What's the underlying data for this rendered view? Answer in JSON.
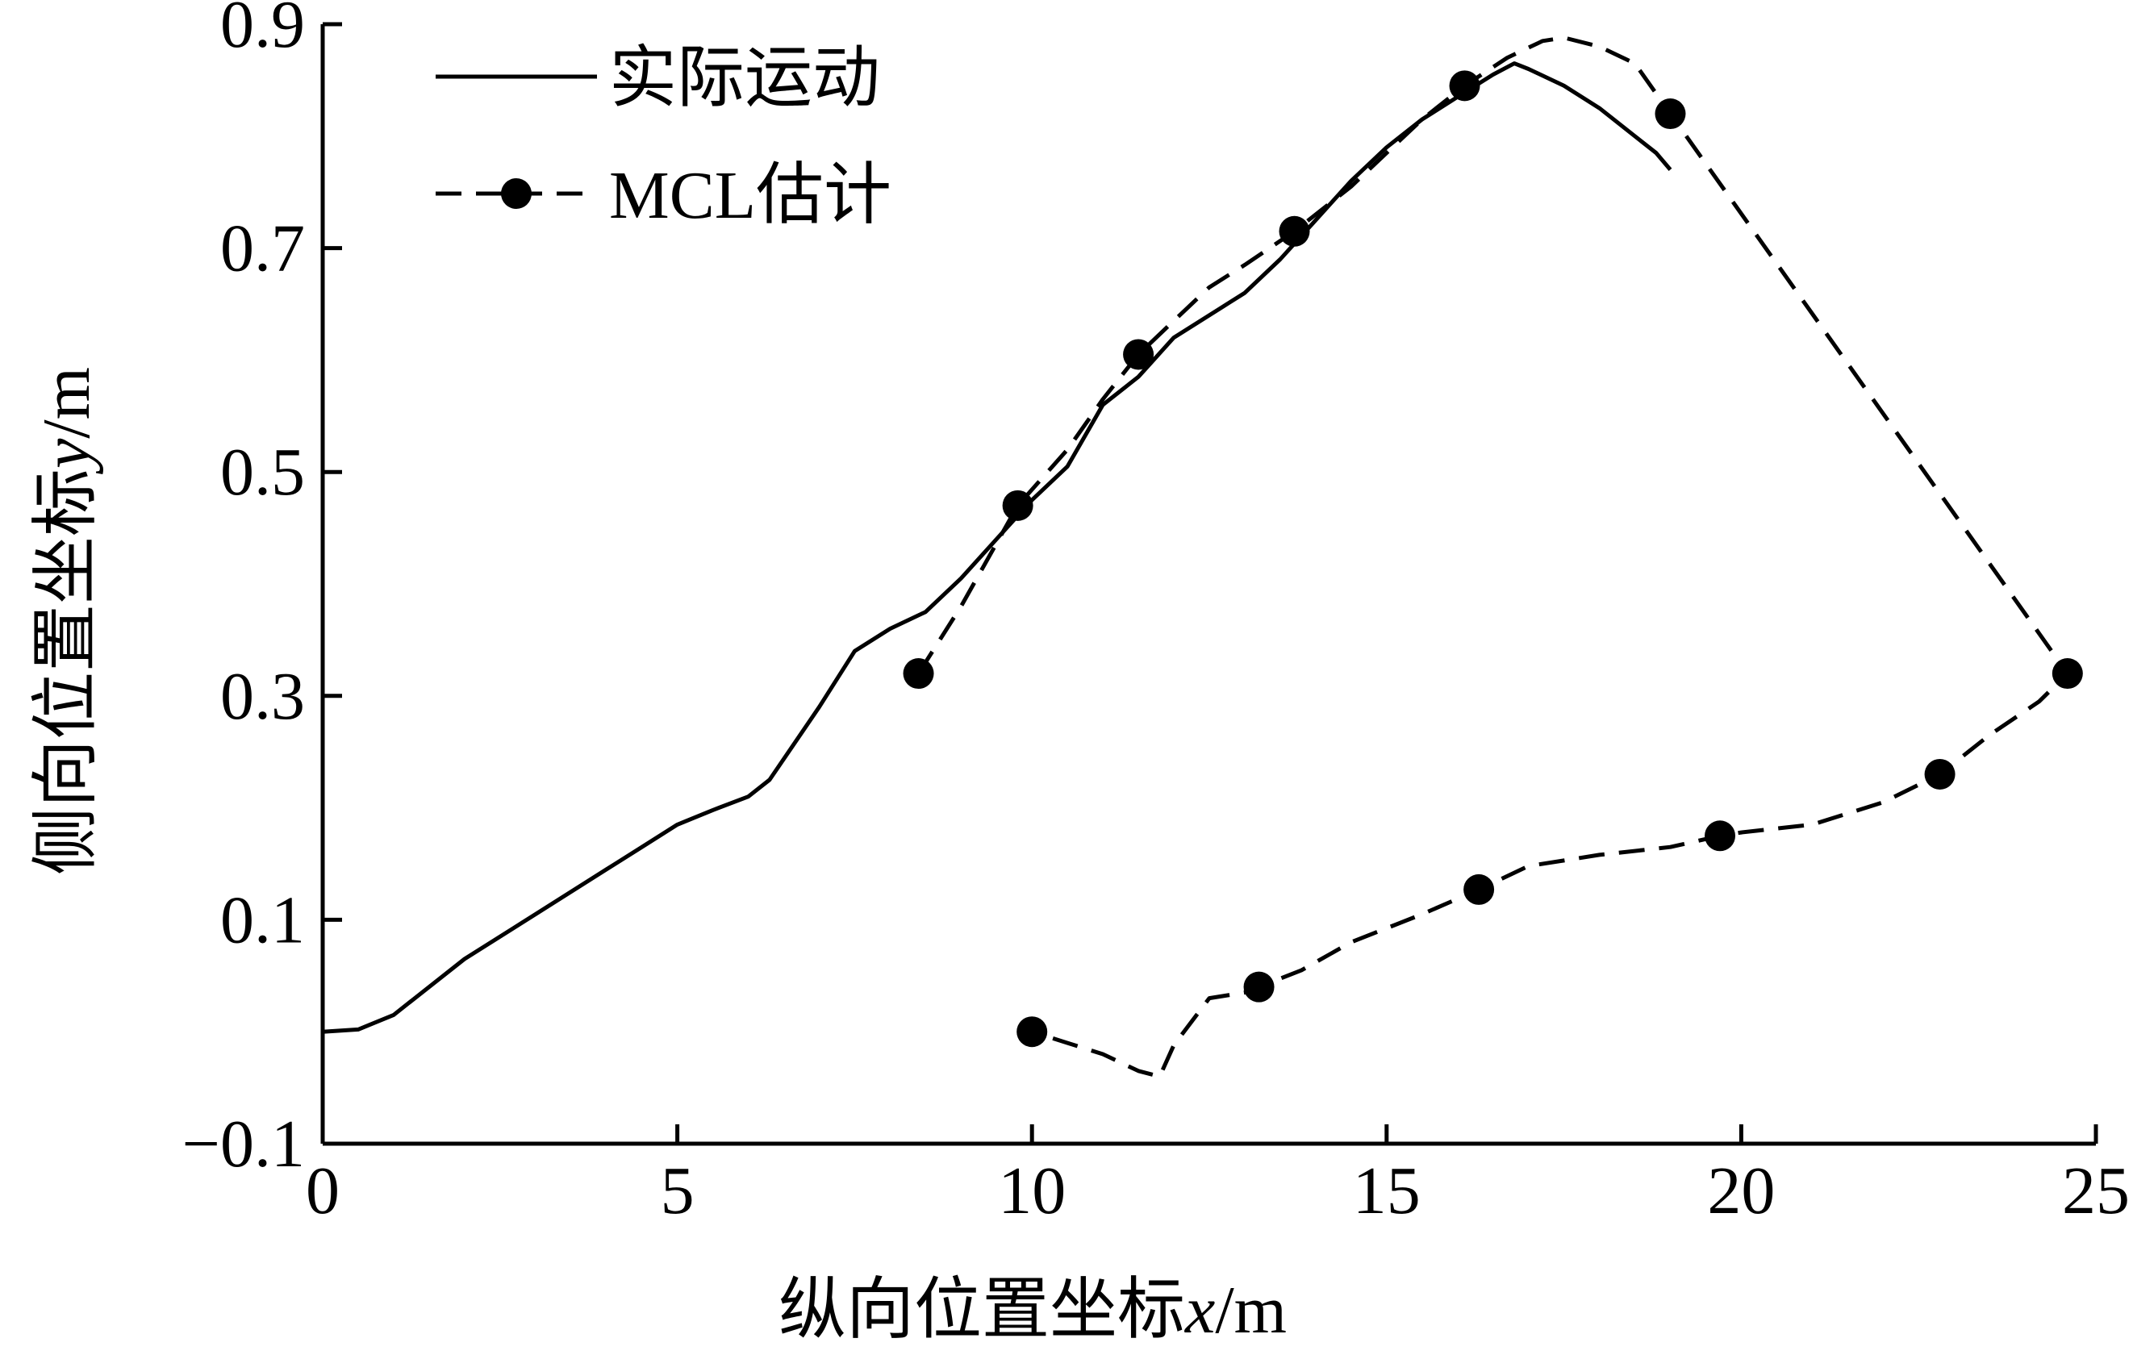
{
  "chart_data": {
    "type": "line",
    "title": "",
    "xlabel": {
      "prefix": "纵向位置坐标",
      "var": "x",
      "suffix": "/m"
    },
    "ylabel": {
      "prefix": "侧向位置坐标",
      "var": "y",
      "suffix": "/m"
    },
    "xlim": [
      0,
      25
    ],
    "ylim": [
      -0.1,
      0.9
    ],
    "xticks": [
      0,
      5,
      10,
      15,
      20,
      25
    ],
    "xtick_labels": [
      "0",
      "5",
      "10",
      "15",
      "20",
      "25"
    ],
    "yticks": [
      -0.1,
      0.1,
      0.3,
      0.5,
      0.7,
      0.9
    ],
    "ytick_labels": [
      "−0.1",
      "0.1",
      "0.3",
      "0.5",
      "0.7",
      "0.9"
    ],
    "grid": false,
    "legend_position": "top-left",
    "series": [
      {
        "name": "实际运动",
        "style": "solid",
        "color": "#000000",
        "marker": "none",
        "x": [
          0,
          0.5,
          1,
          2,
          3,
          4,
          4.5,
          5,
          5.5,
          6,
          6.3,
          7,
          7.5,
          8,
          8.5,
          9,
          9.5,
          10,
          10.5,
          11,
          11.5,
          12,
          12.5,
          13,
          13.5,
          14,
          14.5,
          15,
          15.5,
          16,
          16.5,
          16.8,
          17,
          17.5,
          18,
          18.5,
          18.8,
          19.0
        ],
        "y": [
          0,
          0.002,
          0.015,
          0.065,
          0.105,
          0.145,
          0.165,
          0.185,
          0.198,
          0.21,
          0.225,
          0.29,
          0.34,
          0.36,
          0.375,
          0.405,
          0.44,
          0.475,
          0.505,
          0.56,
          0.585,
          0.62,
          0.64,
          0.66,
          0.69,
          0.725,
          0.76,
          0.79,
          0.815,
          0.835,
          0.855,
          0.865,
          0.86,
          0.845,
          0.825,
          0.8,
          0.785,
          0.77
        ]
      },
      {
        "name": "MCL估计",
        "style": "dashed",
        "color": "#000000",
        "marker": "circle",
        "x": [
          8.4,
          9.0,
          9.8,
          10.5,
          11.0,
          11.5,
          12.0,
          12.5,
          13.0,
          13.7,
          14.5,
          15.0,
          15.5,
          16.1,
          16.7,
          17.2,
          17.5,
          18.0,
          18.5,
          19.0,
          24.6,
          24.2,
          23.5,
          22.8,
          22.0,
          21.0,
          20.0,
          19.7,
          19.0,
          18.0,
          17.0,
          16.3,
          15.5,
          14.5,
          13.8,
          13.2,
          13.0,
          12.5,
          12.0,
          11.8,
          11.5,
          11.0,
          10.5,
          10.0
        ],
        "y": [
          0.32,
          0.38,
          0.47,
          0.52,
          0.565,
          0.605,
          0.635,
          0.665,
          0.685,
          0.715,
          0.755,
          0.785,
          0.815,
          0.845,
          0.87,
          0.885,
          0.888,
          0.88,
          0.865,
          0.82,
          0.32,
          0.295,
          0.265,
          0.23,
          0.205,
          0.185,
          0.178,
          0.175,
          0.165,
          0.158,
          0.148,
          0.127,
          0.105,
          0.08,
          0.055,
          0.04,
          0.035,
          0.03,
          -0.012,
          -0.04,
          -0.035,
          -0.02,
          -0.01,
          0.0
        ],
        "markers": [
          [
            8.4,
            0.32
          ],
          [
            9.8,
            0.47
          ],
          [
            11.5,
            0.605
          ],
          [
            13.7,
            0.715
          ],
          [
            16.1,
            0.845
          ],
          [
            19.0,
            0.82
          ],
          [
            24.6,
            0.32
          ],
          [
            22.8,
            0.23
          ],
          [
            19.7,
            0.175
          ],
          [
            16.3,
            0.127
          ],
          [
            13.2,
            0.04
          ],
          [
            10.0,
            0.0
          ]
        ]
      }
    ]
  }
}
